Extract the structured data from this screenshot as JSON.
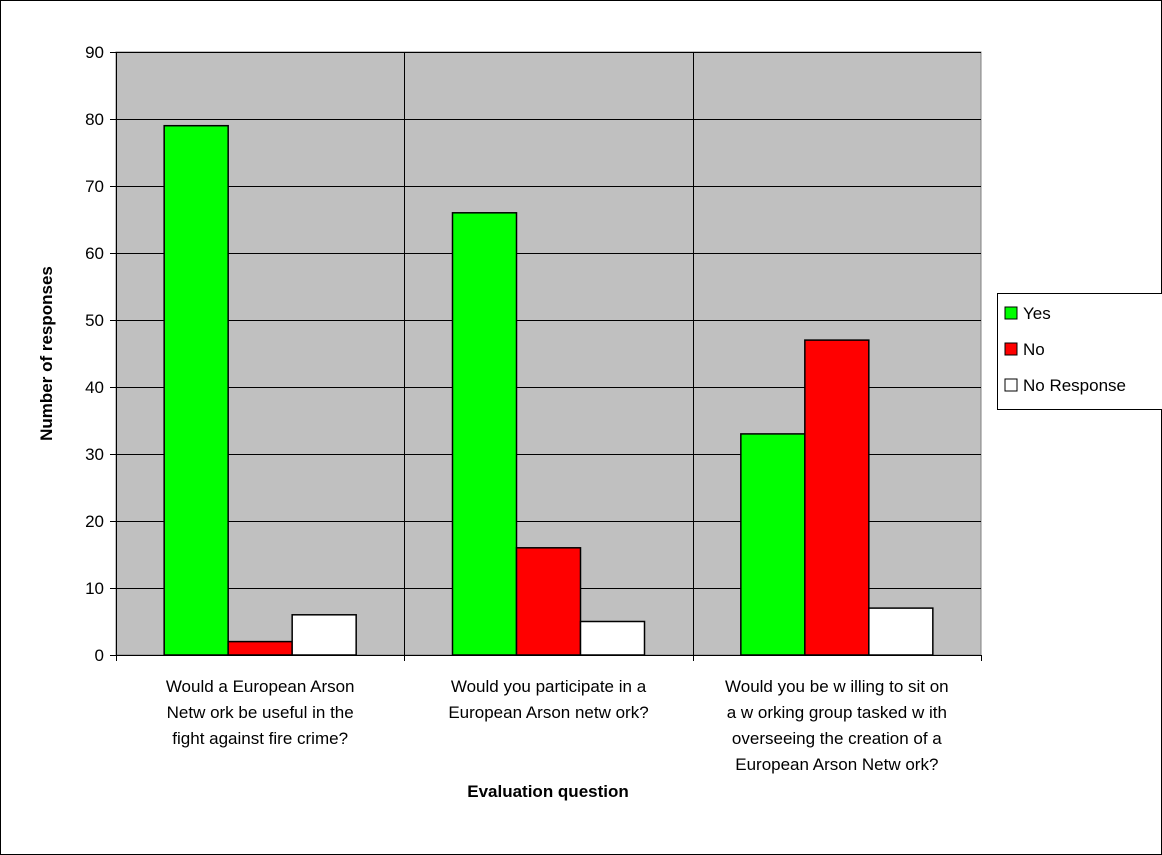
{
  "chart_data": {
    "type": "bar",
    "title": "",
    "xlabel": "Evaluation question",
    "ylabel": "Number of responses",
    "ylim": [
      0,
      90
    ],
    "yticks": [
      0,
      10,
      20,
      30,
      40,
      50,
      60,
      70,
      80,
      90
    ],
    "grid": true,
    "legend_position": "right",
    "plot_background": "#C0C0C0",
    "categories": [
      [
        "Would a European Arson",
        "Netw ork be useful in the",
        "fight against fire crime?"
      ],
      [
        "Would you participate in a",
        "European Arson netw ork?"
      ],
      [
        "Would you be w illing to sit on",
        "a w orking group tasked w ith",
        "overseeing the creation of a",
        "European Arson Netw ork?"
      ]
    ],
    "series": [
      {
        "name": "Yes",
        "color": "#00FF00",
        "values": [
          79,
          66,
          33
        ]
      },
      {
        "name": "No",
        "color": "#FF0000",
        "values": [
          2,
          16,
          47
        ]
      },
      {
        "name": "No Response",
        "color": "#FFFFFF",
        "values": [
          6,
          5,
          7
        ]
      }
    ]
  }
}
